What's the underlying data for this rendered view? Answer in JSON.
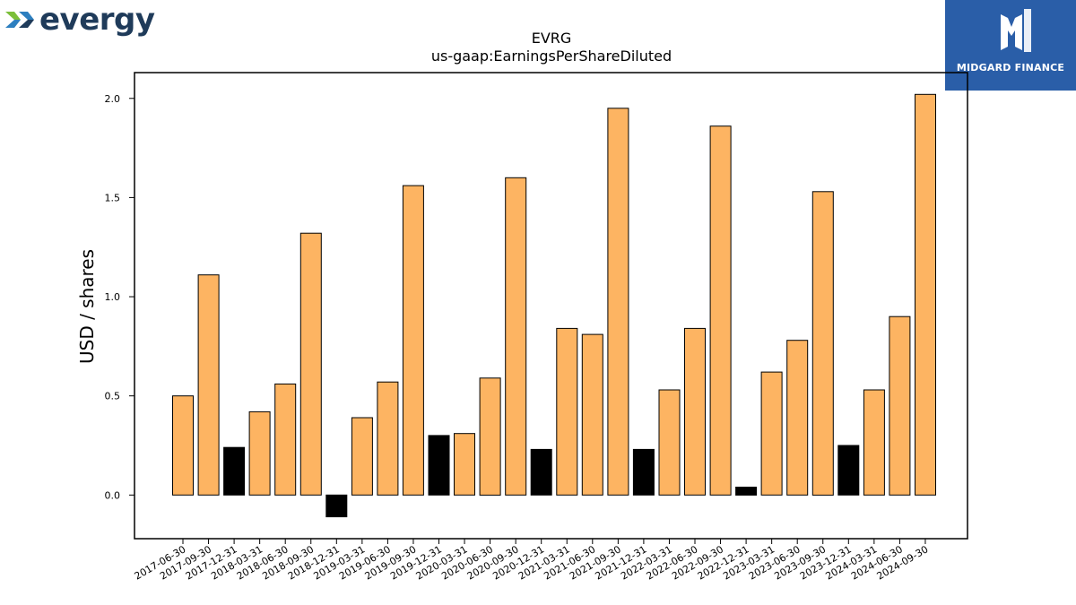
{
  "branding": {
    "company_wordmark": "evergy",
    "badge_text": "MIDGARD FINANCE",
    "logo_colors": {
      "arrow_green": "#7bbf3a",
      "arrow_blue": "#2d7fbf",
      "wordmark": "#1f3b5a",
      "badge_bg": "#2a5ea8"
    }
  },
  "chart_data": {
    "type": "bar",
    "title": "EVRG",
    "subtitle": "us-gaap:EarningsPerShareDiluted",
    "xlabel": "",
    "ylabel": "USD / shares",
    "ylim": [
      -0.22,
      2.13
    ],
    "yticks": [
      0.0,
      0.5,
      1.0,
      1.5,
      2.0
    ],
    "ytick_labels": [
      "0.0",
      "0.5",
      "1.0",
      "1.5",
      "2.0"
    ],
    "grid": false,
    "colors": {
      "quarter": "#fdb462",
      "year_end": "#000000",
      "edge": "#000000"
    },
    "categories": [
      "2017-06-30",
      "2017-09-30",
      "2017-12-31",
      "2018-03-31",
      "2018-06-30",
      "2018-09-30",
      "2018-12-31",
      "2019-03-31",
      "2019-06-30",
      "2019-09-30",
      "2019-12-31",
      "2020-03-31",
      "2020-06-30",
      "2020-09-30",
      "2020-12-31",
      "2021-03-31",
      "2021-06-30",
      "2021-09-30",
      "2021-12-31",
      "2022-03-31",
      "2022-06-30",
      "2022-09-30",
      "2022-12-31",
      "2023-03-31",
      "2023-06-30",
      "2023-09-30",
      "2023-12-31",
      "2024-03-31",
      "2024-06-30",
      "2024-09-30"
    ],
    "values": [
      0.5,
      1.11,
      0.24,
      0.42,
      0.56,
      1.32,
      -0.11,
      0.39,
      0.57,
      1.56,
      0.3,
      0.31,
      0.59,
      1.6,
      0.23,
      0.84,
      0.81,
      1.95,
      0.23,
      0.53,
      0.84,
      1.86,
      0.04,
      0.62,
      0.78,
      1.53,
      0.25,
      0.53,
      0.9,
      2.02
    ],
    "year_end_flags": [
      false,
      false,
      true,
      false,
      false,
      false,
      true,
      false,
      false,
      false,
      true,
      false,
      false,
      false,
      true,
      false,
      false,
      false,
      true,
      false,
      false,
      false,
      true,
      false,
      false,
      false,
      true,
      false,
      false,
      false
    ]
  }
}
